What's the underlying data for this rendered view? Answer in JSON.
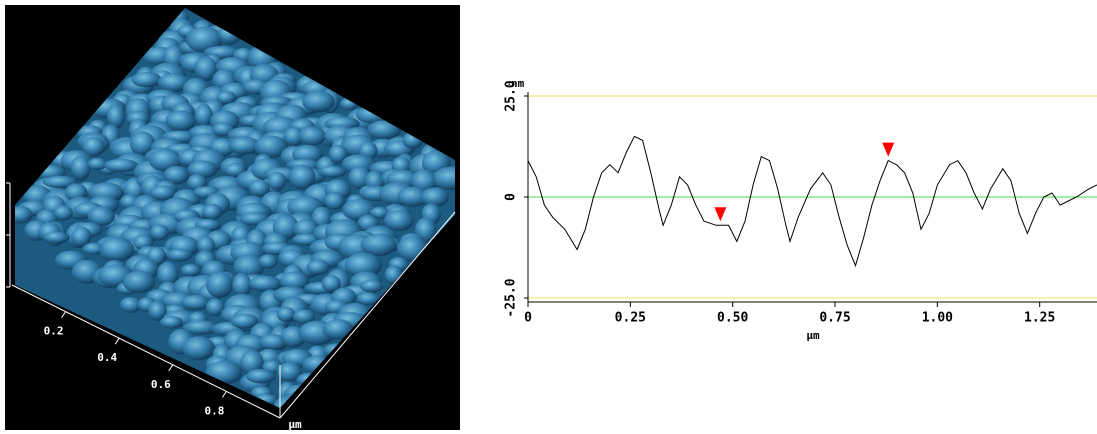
{
  "chart_data": [
    {
      "type": "surface",
      "xlabel": "μm",
      "xlim": [
        0,
        1
      ],
      "xticks": [
        0.2,
        0.4,
        0.6,
        0.8
      ]
    },
    {
      "type": "line",
      "ylabel": "nm",
      "xlabel": "μm",
      "xlim": [
        0,
        1.39
      ],
      "ylim": [
        -25,
        25
      ],
      "xticks": [
        0,
        0.25,
        {
          "value": 0.5,
          "label": "0.50"
        },
        0.75,
        {
          "value": 1,
          "label": "1.00"
        },
        1.25
      ],
      "yticks": [
        {
          "value": 25,
          "label": "25.0"
        },
        0,
        {
          "value": -25,
          "label": "-25.0"
        }
      ],
      "limit_color": "#f0e060",
      "zero_color": "#40e040",
      "x": [
        0,
        0.02,
        0.04,
        0.06,
        0.09,
        0.12,
        0.14,
        0.16,
        0.18,
        0.2,
        0.22,
        0.24,
        0.26,
        0.28,
        0.3,
        0.32,
        0.33,
        0.35,
        0.37,
        0.39,
        0.41,
        0.43,
        0.46,
        0.49,
        0.51,
        0.53,
        0.55,
        0.57,
        0.59,
        0.61,
        0.63,
        0.64,
        0.66,
        0.69,
        0.72,
        0.74,
        0.76,
        0.78,
        0.8,
        0.82,
        0.84,
        0.86,
        0.88,
        0.9,
        0.92,
        0.94,
        0.96,
        0.98,
        1.0,
        1.03,
        1.05,
        1.07,
        1.09,
        1.11,
        1.13,
        1.16,
        1.18,
        1.2,
        1.22,
        1.24,
        1.26,
        1.28,
        1.3,
        1.32,
        1.34,
        1.37,
        1.39
      ],
      "series": [
        {
          "color": "#000000",
          "values": [
            9,
            5,
            -2,
            -5,
            -8,
            -13,
            -8,
            0,
            6,
            8,
            6,
            11,
            15,
            14,
            6,
            -3,
            -7,
            -2,
            5,
            3,
            -2,
            -6,
            -7,
            -7,
            -11,
            -6,
            3,
            10,
            9,
            2,
            -7,
            -11,
            -5,
            2,
            6,
            3,
            -5,
            -12,
            -17,
            -10,
            -2,
            4,
            9,
            8,
            6,
            1,
            -8,
            -4,
            3,
            8,
            9,
            6,
            1,
            -3,
            2,
            7,
            4,
            -4,
            -9,
            -4,
            0,
            1,
            -2,
            -1,
            0,
            2,
            3
          ]
        }
      ],
      "markers": {
        "color": "#ff0000",
        "x": [
          0.47,
          0.88
        ],
        "y": [
          -7,
          9
        ]
      }
    }
  ]
}
